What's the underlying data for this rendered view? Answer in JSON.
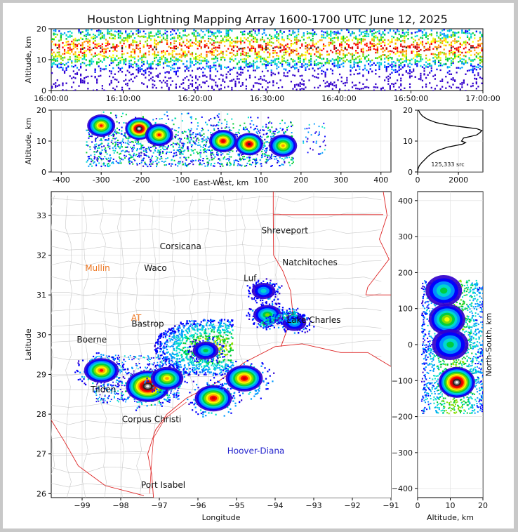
{
  "title": "Houston Lightning Mapping Array 1600-1700 UTC June 12, 2025",
  "colors": {
    "density_scale": [
      "#3300cc",
      "#0000ff",
      "#0099ff",
      "#00ddcc",
      "#00cc33",
      "#88dd00",
      "#ffff00",
      "#ff9900",
      "#ff0000",
      "#cc0000",
      "#222222",
      "#888888",
      "#ffffff"
    ],
    "map_state_borders": "#dd2222",
    "map_county_borders": "#c8c8c8",
    "city_label_default": "#111111",
    "city_label_orange": "#ee7722",
    "city_label_blue": "#2222cc",
    "city_label_green": "#66cc22"
  },
  "chart_data": [
    {
      "id": "time_height",
      "type": "heatmap",
      "xlabel": "",
      "ylabel": "Altitude, km",
      "x_ticks": [
        "16:00:00",
        "16:10:00",
        "16:20:00",
        "16:30:00",
        "16:40:00",
        "16:50:00",
        "17:00:00"
      ],
      "xlim": [
        "16:00:00",
        "17:00:00"
      ],
      "y_ticks": [
        0,
        10,
        20
      ],
      "ylim": [
        0,
        20
      ],
      "grid": false,
      "core_altitude_km": [
        9,
        17
      ],
      "peak_altitude_km": 14
    },
    {
      "id": "east_west_height",
      "type": "heatmap",
      "xlabel": "East-West, km",
      "ylabel": "Altitude, km",
      "x_ticks": [
        -400,
        -300,
        -200,
        -100,
        0,
        100,
        200,
        300,
        400
      ],
      "xlim": [
        -425,
        425
      ],
      "y_ticks": [
        0,
        10,
        20
      ],
      "ylim": [
        0,
        20
      ],
      "grid": true,
      "hotspots": [
        {
          "x": -205,
          "y": 14,
          "level": 12
        },
        {
          "x": -300,
          "y": 15,
          "level": 8
        },
        {
          "x": -155,
          "y": 12,
          "level": 8
        },
        {
          "x": 5,
          "y": 10,
          "level": 9
        },
        {
          "x": 70,
          "y": 9,
          "level": 10
        },
        {
          "x": 155,
          "y": 8.5,
          "level": 7
        }
      ]
    },
    {
      "id": "altitude_histogram",
      "type": "line",
      "annotation": "125,333 src",
      "x_ticks": [
        0,
        2000
      ],
      "xlim": [
        0,
        3200
      ],
      "y_ticks": [
        0,
        10,
        20
      ],
      "ylim": [
        0,
        20
      ],
      "points": [
        [
          0,
          0
        ],
        [
          20,
          1
        ],
        [
          80,
          2
        ],
        [
          200,
          3
        ],
        [
          350,
          4
        ],
        [
          500,
          5
        ],
        [
          700,
          6
        ],
        [
          1000,
          7
        ],
        [
          1450,
          8
        ],
        [
          2200,
          9
        ],
        [
          2350,
          9.5
        ],
        [
          2150,
          10
        ],
        [
          2250,
          11
        ],
        [
          2600,
          11.5
        ],
        [
          2900,
          12
        ],
        [
          3050,
          12.7
        ],
        [
          3150,
          13.4
        ],
        [
          2900,
          14
        ],
        [
          2200,
          14.6
        ],
        [
          1500,
          15.2
        ],
        [
          900,
          16
        ],
        [
          500,
          17
        ],
        [
          250,
          18
        ],
        [
          120,
          19
        ],
        [
          40,
          20
        ]
      ]
    },
    {
      "id": "plan_view",
      "type": "heatmap",
      "xlabel": "Longitude",
      "ylabel": "Latitude",
      "x_ticks": [
        -99,
        -98,
        -97,
        -96,
        -95,
        -94,
        -93,
        -92,
        -91
      ],
      "xlim": [
        -99.8,
        -91
      ],
      "y_ticks": [
        26,
        27,
        28,
        29,
        30,
        31,
        32,
        33
      ],
      "ylim": [
        25.9,
        33.6
      ],
      "grid": true,
      "cells": [
        {
          "lon": -97.3,
          "lat": 28.7,
          "level": 12
        },
        {
          "lon": -98.5,
          "lat": 29.1,
          "level": 8
        },
        {
          "lon": -96.8,
          "lat": 28.9,
          "level": 7
        },
        {
          "lon": -95.8,
          "lat": 29.6,
          "level": 4
        },
        {
          "lon": -95.6,
          "lat": 28.4,
          "level": 9
        },
        {
          "lon": -94.8,
          "lat": 28.9,
          "level": 9
        },
        {
          "lon": -94.2,
          "lat": 30.5,
          "level": 5
        },
        {
          "lon": -94.3,
          "lat": 31.1,
          "level": 3
        },
        {
          "lon": -93.5,
          "lat": 30.3,
          "level": 3
        }
      ],
      "cities": [
        {
          "name": "Shreveport",
          "lon": -93.75,
          "lat": 32.55,
          "color": "#111111"
        },
        {
          "name": "Corsicana",
          "lon": -96.45,
          "lat": 32.15,
          "color": "#111111"
        },
        {
          "name": "Natchitoches",
          "lon": -93.1,
          "lat": 31.75,
          "color": "#111111"
        },
        {
          "name": "Mullin",
          "lon": -98.6,
          "lat": 31.6,
          "color": "#ee7722"
        },
        {
          "name": "Waco",
          "lon": -97.1,
          "lat": 31.6,
          "color": "#111111"
        },
        {
          "name": "Luf",
          "lon": -94.65,
          "lat": 31.35,
          "color": "#111111"
        },
        {
          "name": "Lake Charles",
          "lon": -93.0,
          "lat": 30.3,
          "color": "#111111"
        },
        {
          "name": "AT",
          "lon": -97.6,
          "lat": 30.35,
          "color": "#ee7722"
        },
        {
          "name": "Bastrop",
          "lon": -97.3,
          "lat": 30.2,
          "color": "#111111"
        },
        {
          "name": "Boerne",
          "lon": -98.75,
          "lat": 29.8,
          "color": "#111111"
        },
        {
          "name": "Tilden",
          "lon": -98.45,
          "lat": 28.55,
          "color": "#111111"
        },
        {
          "name": "Corpus Christi",
          "lon": -97.2,
          "lat": 27.8,
          "color": "#111111"
        },
        {
          "name": "Hoover-Diana",
          "lon": -94.5,
          "lat": 27.0,
          "color": "#2222cc"
        },
        {
          "name": "Port Isabel",
          "lon": -96.9,
          "lat": 26.15,
          "color": "#111111"
        }
      ]
    },
    {
      "id": "north_south_height",
      "type": "heatmap",
      "xlabel": "Altitude, km",
      "ylabel": "North-South, km",
      "x_ticks": [
        0,
        10,
        20
      ],
      "xlim": [
        0,
        20
      ],
      "y_ticks": [
        -400,
        -300,
        -200,
        -100,
        0,
        100,
        200,
        300,
        400
      ],
      "ylim": [
        -425,
        425
      ],
      "grid": true,
      "hotspots": [
        {
          "alt": 12,
          "ns": -105,
          "level": 12
        },
        {
          "alt": 9,
          "ns": 70,
          "level": 6
        },
        {
          "alt": 10,
          "ns": 0,
          "level": 4
        },
        {
          "alt": 8,
          "ns": 150,
          "level": 4
        }
      ]
    }
  ]
}
